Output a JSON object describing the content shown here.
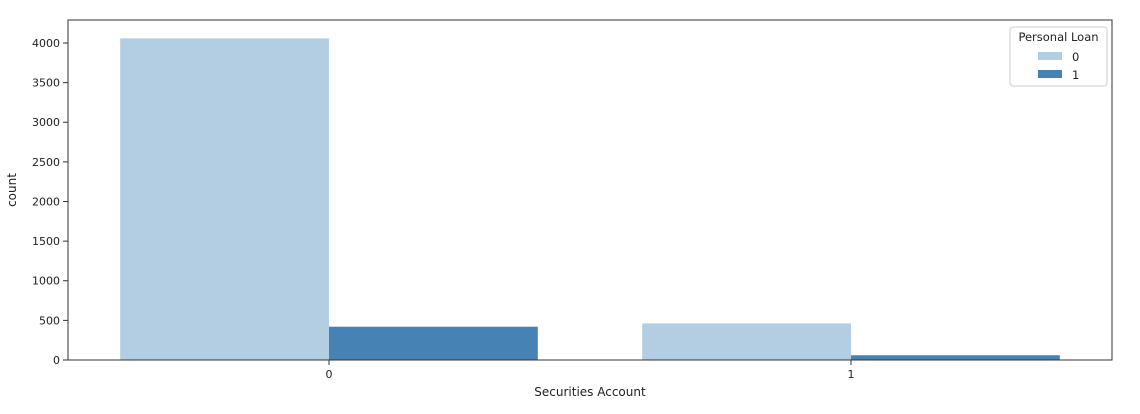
{
  "chart_data": {
    "type": "bar",
    "title": "",
    "xlabel": "Securities Account",
    "ylabel": "count",
    "categories": [
      "0",
      "1"
    ],
    "series": [
      {
        "name": "0",
        "color": "#b3cde3",
        "values": [
          4058,
          462
        ]
      },
      {
        "name": "1",
        "color": "#4682b4",
        "values": [
          420,
          60
        ]
      }
    ],
    "ylim": [
      0,
      4290
    ],
    "yticks": [
      0,
      500,
      1000,
      1500,
      2000,
      2500,
      3000,
      3500,
      4000
    ],
    "grid": false,
    "legend": {
      "title": "Personal Loan",
      "placement": "top-right"
    }
  }
}
